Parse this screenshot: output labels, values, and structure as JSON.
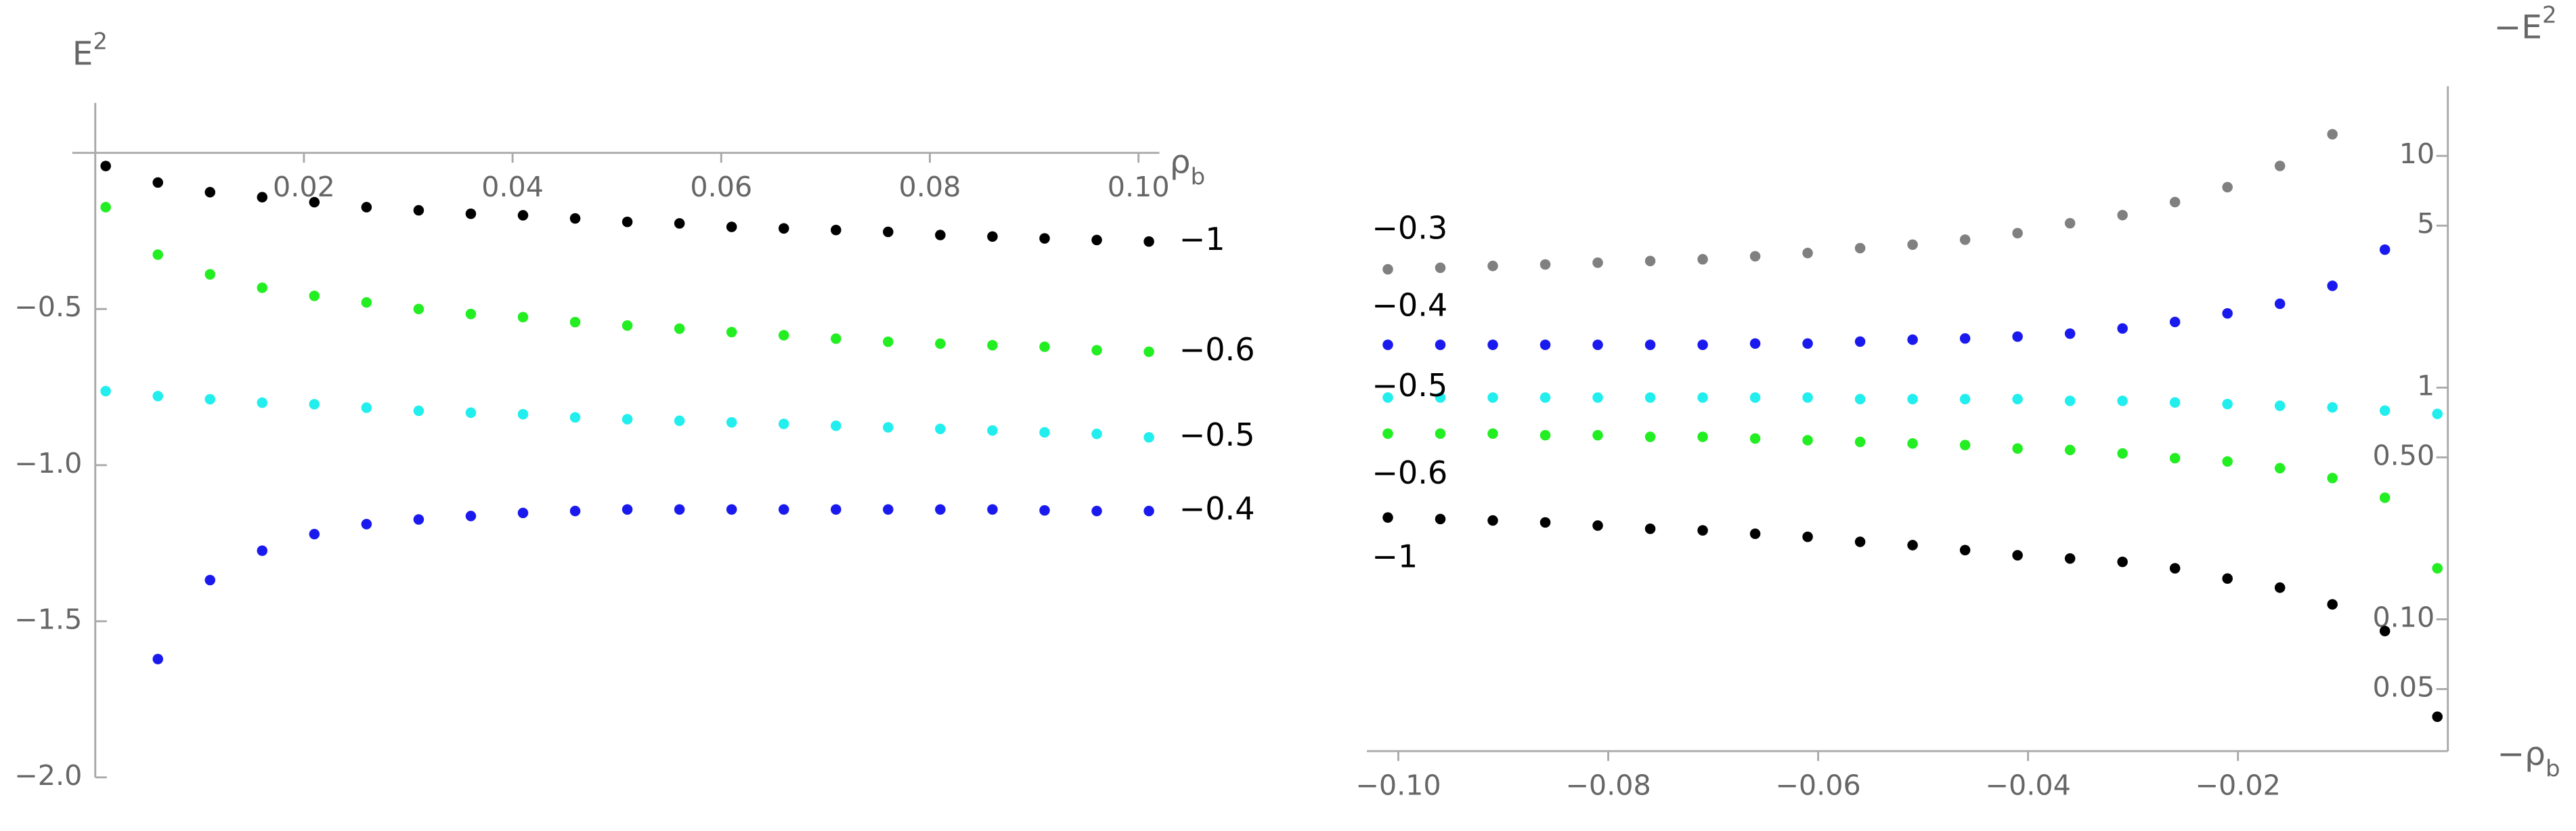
{
  "chart_data": [
    {
      "type": "scatter",
      "x_label": [
        "ρ",
        "b"
      ],
      "y_label": [
        "E",
        "2"
      ],
      "x": [
        0.001,
        0.006,
        0.011,
        0.016,
        0.021,
        0.026,
        0.031,
        0.036,
        0.041,
        0.046,
        0.051,
        0.056,
        0.061,
        0.066,
        0.071,
        0.076,
        0.081,
        0.086,
        0.091,
        0.096,
        0.101
      ],
      "xlim": [
        0,
        0.102
      ],
      "ylim": [
        -2.0,
        0.16
      ],
      "xticks": [
        0.02,
        0.04,
        0.06,
        0.08,
        {
          "value": 0.1,
          "label": "0.10"
        }
      ],
      "yticks": [
        {
          "value": -0.5,
          "label": "−0.5"
        },
        {
          "value": -1.0,
          "label": "−1.0"
        },
        {
          "value": -1.5,
          "label": "−1.5"
        },
        {
          "value": -2.0,
          "label": "−2.0"
        }
      ],
      "series": [
        {
          "name": "−1",
          "color": "#000000",
          "values": [
            -0.042,
            -0.095,
            -0.126,
            -0.142,
            -0.158,
            -0.174,
            -0.184,
            -0.195,
            -0.2,
            -0.21,
            -0.221,
            -0.226,
            -0.237,
            -0.242,
            -0.247,
            -0.253,
            -0.263,
            -0.268,
            -0.274,
            -0.279,
            -0.284
          ]
        },
        {
          "name": "−0.6",
          "color": "#22ee22",
          "values": [
            -0.174,
            -0.326,
            -0.389,
            -0.432,
            -0.458,
            -0.479,
            -0.5,
            -0.516,
            -0.526,
            -0.542,
            -0.553,
            -0.563,
            -0.574,
            -0.584,
            -0.595,
            -0.605,
            -0.611,
            -0.616,
            -0.621,
            -0.632,
            -0.637
          ]
        },
        {
          "name": "−0.5",
          "color": "#22eeee",
          "values": [
            -0.763,
            -0.779,
            -0.789,
            -0.8,
            -0.805,
            -0.816,
            -0.826,
            -0.832,
            -0.837,
            -0.847,
            -0.853,
            -0.858,
            -0.863,
            -0.868,
            -0.874,
            -0.879,
            -0.884,
            -0.889,
            -0.895,
            -0.9,
            -0.911
          ]
        },
        {
          "name": "−0.4",
          "color": "#1a1aee",
          "values": [
            null,
            -1.621,
            -1.368,
            -1.274,
            -1.221,
            -1.189,
            -1.174,
            -1.163,
            -1.153,
            -1.147,
            -1.142,
            -1.142,
            -1.142,
            -1.142,
            -1.142,
            -1.142,
            -1.142,
            -1.142,
            -1.145,
            -1.147,
            -1.147
          ]
        }
      ]
    },
    {
      "type": "scatter",
      "y_scale": "log",
      "x_label": [
        "−ρ",
        "b"
      ],
      "y_label": [
        "−E",
        "2"
      ],
      "x": [
        -0.101,
        -0.096,
        -0.091,
        -0.086,
        -0.081,
        -0.076,
        -0.071,
        -0.066,
        -0.061,
        -0.056,
        -0.051,
        -0.046,
        -0.041,
        -0.036,
        -0.031,
        -0.026,
        -0.021,
        -0.016,
        -0.011,
        -0.006,
        -0.001
      ],
      "xlim": [
        -0.103,
        0
      ],
      "ylim": [
        0.027,
        20
      ],
      "xticks": [
        {
          "value": -0.1,
          "label": "−0.10"
        },
        {
          "value": -0.08,
          "label": "−0.08"
        },
        {
          "value": -0.06,
          "label": "−0.06"
        },
        {
          "value": -0.04,
          "label": "−0.04"
        },
        {
          "value": -0.02,
          "label": "−0.02"
        }
      ],
      "yticks": [
        10,
        5,
        1,
        {
          "value": 0.5,
          "label": "0.50"
        },
        {
          "value": 0.1,
          "label": "0.10"
        },
        0.05
      ],
      "series": [
        {
          "name": "−0.3",
          "color": "#808080",
          "values": [
            3.24,
            3.29,
            3.35,
            3.4,
            3.46,
            3.52,
            3.58,
            3.69,
            3.81,
            4.0,
            4.14,
            4.35,
            4.64,
            5.12,
            5.55,
            6.32,
            7.33,
            9.05,
            12.4,
            null,
            null
          ]
        },
        {
          "name": "−0.4",
          "color": "#1a1aee",
          "values": [
            1.53,
            1.53,
            1.53,
            1.53,
            1.53,
            1.53,
            1.53,
            1.55,
            1.55,
            1.58,
            1.61,
            1.63,
            1.66,
            1.71,
            1.8,
            1.92,
            2.09,
            2.3,
            2.75,
            3.94,
            null
          ]
        },
        {
          "name": "−0.5",
          "color": "#22eeee",
          "values": [
            0.906,
            0.906,
            0.906,
            0.906,
            0.906,
            0.906,
            0.906,
            0.906,
            0.906,
            0.892,
            0.892,
            0.892,
            0.892,
            0.877,
            0.877,
            0.863,
            0.849,
            0.835,
            0.822,
            0.796,
            0.77
          ]
        },
        {
          "name": "−0.6",
          "color": "#22ee22",
          "values": [
            0.633,
            0.633,
            0.633,
            0.623,
            0.623,
            0.613,
            0.613,
            0.603,
            0.593,
            0.583,
            0.574,
            0.565,
            0.546,
            0.538,
            0.52,
            0.496,
            0.48,
            0.449,
            0.407,
            0.335,
            0.166
          ]
        },
        {
          "name": "−1",
          "color": "#000000",
          "values": [
            0.275,
            0.271,
            0.267,
            0.262,
            0.254,
            0.246,
            0.242,
            0.234,
            0.227,
            0.216,
            0.209,
            0.199,
            0.189,
            0.183,
            0.177,
            0.166,
            0.15,
            0.137,
            0.116,
            0.089,
            0.038
          ]
        }
      ]
    }
  ]
}
